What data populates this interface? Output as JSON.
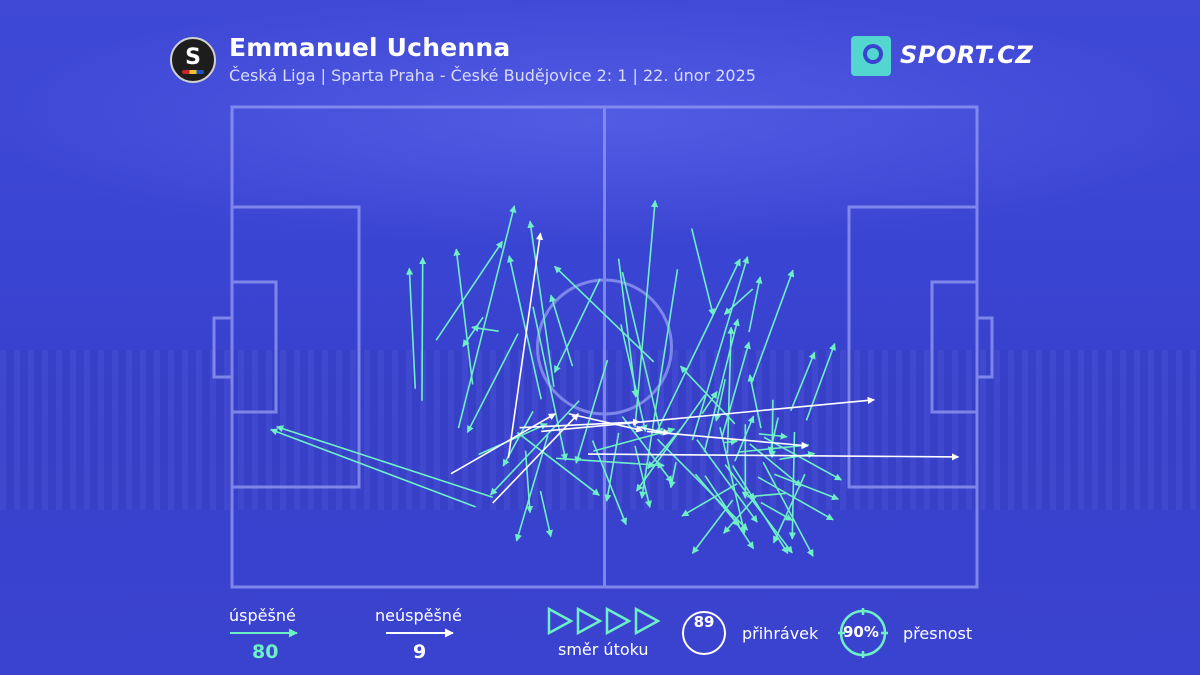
{
  "header": {
    "title": "Emmanuel Uchenna",
    "subtitle": "Česká Liga | Sparta Praha - České Budějovice 2: 1 | 22. únor 2025",
    "club_logo_letter": "S",
    "brand": "SPORT.CZ"
  },
  "legend": {
    "successful_label": "úspěšné",
    "successful_count": "80",
    "unsuccessful_label": "neúspěšné",
    "unsuccessful_count": "9",
    "direction_label": "směr útoku",
    "passes_value": "89",
    "passes_label": "přihrávek",
    "accuracy_value": "90%",
    "accuracy_label": "přesnost"
  },
  "colors": {
    "background": "#3a43cf",
    "successful": "#6ef0c6",
    "unsuccessful": "#ffffff",
    "pitch_lines": "#8a92ee"
  },
  "chart_data": {
    "type": "scatter",
    "description_units": "pitch coordinates, x 0-100 along attack direction (left to right), y 0-100 from top touchline",
    "xlim": [
      0,
      100
    ],
    "ylim": [
      0,
      100
    ],
    "series": [
      {
        "name": "úspěšné",
        "passes": [
          [
            32.7,
            83.3,
            5.2,
            67.2
          ],
          [
            35.0,
            81.3,
            6.0,
            66.6
          ],
          [
            25.5,
            61.2,
            25.6,
            31.4
          ],
          [
            24.6,
            58.7,
            23.8,
            33.6
          ],
          [
            32.3,
            57.8,
            30.1,
            29.6
          ],
          [
            35.8,
            46.7,
            32.2,
            45.9
          ],
          [
            27.4,
            48.6,
            36.3,
            28.0
          ],
          [
            30.4,
            66.9,
            37.9,
            20.6
          ],
          [
            43.2,
            58.3,
            40.0,
            23.8
          ],
          [
            56.6,
            53.1,
            43.3,
            33.2
          ],
          [
            41.5,
            60.9,
            37.2,
            31.0
          ],
          [
            33.7,
            43.8,
            31.0,
            49.9
          ],
          [
            38.4,
            47.2,
            31.6,
            67.8
          ],
          [
            45.7,
            54.0,
            42.8,
            39.2
          ],
          [
            43.5,
            73.2,
            58.0,
            74.7
          ],
          [
            40.4,
            41.6,
            44.8,
            73.6
          ],
          [
            49.4,
            35.8,
            43.3,
            55.3
          ],
          [
            50.4,
            52.7,
            46.2,
            74.2
          ],
          [
            52.2,
            45.3,
            55.5,
            67.6
          ],
          [
            54.1,
            66.7,
            56.8,
            19.5
          ],
          [
            52.4,
            34.4,
            57.6,
            68.3
          ],
          [
            51.9,
            31.6,
            54.2,
            60.4
          ],
          [
            63.5,
            60.0,
            54.3,
            80.0
          ],
          [
            59.8,
            33.8,
            55.0,
            81.5
          ],
          [
            61.7,
            25.3,
            64.6,
            43.4
          ],
          [
            63.1,
            63.9,
            65.1,
            59.3
          ],
          [
            66.2,
            56.7,
            65.0,
            65.4
          ],
          [
            66.1,
            69.9,
            67.8,
            69.6
          ],
          [
            68.9,
            66.1,
            68.9,
            81.5
          ],
          [
            73.3,
            64.7,
            72.2,
            72.2
          ],
          [
            73.5,
            73.4,
            78.2,
            72.2
          ],
          [
            72.6,
            61.0,
            72.5,
            73.0
          ],
          [
            75.0,
            63.3,
            78.2,
            51.1
          ],
          [
            77.1,
            65.3,
            80.9,
            49.3
          ],
          [
            67.5,
            66.0,
            60.2,
            54.0
          ],
          [
            69.9,
            37.9,
            66.1,
            43.2
          ],
          [
            69.4,
            46.9,
            70.9,
            35.4
          ],
          [
            71.0,
            66.9,
            69.5,
            55.8
          ],
          [
            69.7,
            57.7,
            75.3,
            34.0
          ],
          [
            71.4,
            68.8,
            81.8,
            77.7
          ],
          [
            68.0,
            71.9,
            77.4,
            70.4
          ],
          [
            66.5,
            72.2,
            67.0,
            45.9
          ],
          [
            61.8,
            69.4,
            69.2,
            31.2
          ],
          [
            57.1,
            67.4,
            68.2,
            31.7
          ],
          [
            63.4,
            71.9,
            67.9,
            44.2
          ],
          [
            65.8,
            68.6,
            69.4,
            49.0
          ],
          [
            67.5,
            73.8,
            70.0,
            64.4
          ],
          [
            70.7,
            68.1,
            74.5,
            68.7
          ],
          [
            76.9,
            76.5,
            72.7,
            90.8
          ],
          [
            74.3,
            80.5,
            69.2,
            81.2
          ],
          [
            70.4,
            81.0,
            66.0,
            88.8
          ],
          [
            67.2,
            81.9,
            61.8,
            93.0
          ],
          [
            71.0,
            82.4,
            75.2,
            86.1
          ],
          [
            72.8,
            76.5,
            81.4,
            81.7
          ],
          [
            60.2,
            67.1,
            55.8,
            75.3
          ],
          [
            57.1,
            69.2,
            69.2,
            88.1
          ],
          [
            62.4,
            69.3,
            70.5,
            86.5
          ],
          [
            65.5,
            66.7,
            68.8,
            88.8
          ],
          [
            62.2,
            76.5,
            68.1,
            87.3
          ],
          [
            54.1,
            70.6,
            56.1,
            83.4
          ],
          [
            46.6,
            61.2,
            34.7,
            80.8
          ],
          [
            40.4,
            63.4,
            36.4,
            74.8
          ],
          [
            39.4,
            71.6,
            40.0,
            84.5
          ],
          [
            33.1,
            72.4,
            42.3,
            66.0
          ],
          [
            38.3,
            67.8,
            49.3,
            80.9
          ],
          [
            41.4,
            80.0,
            42.8,
            89.5
          ],
          [
            48.4,
            69.5,
            52.9,
            87.0
          ],
          [
            51.9,
            67.9,
            50.3,
            82.1
          ],
          [
            48.5,
            71.7,
            59.4,
            67.1
          ],
          [
            52.4,
            64.5,
            59.1,
            78.2
          ],
          [
            63.5,
            76.8,
            70.0,
            92.0
          ],
          [
            67.2,
            74.7,
            74.6,
            93.0
          ],
          [
            75.5,
            67.7,
            75.2,
            90.0
          ],
          [
            69.5,
            70.2,
            76.4,
            79.0
          ],
          [
            70.6,
            77.1,
            80.7,
            86.0
          ],
          [
            42.4,
            68.4,
            38.2,
            90.4
          ],
          [
            59.6,
            74.0,
            58.9,
            79.3
          ],
          [
            66.2,
            74.5,
            75.2,
            92.9
          ],
          [
            71.3,
            74.0,
            78.0,
            93.6
          ],
          [
            67.8,
            78.5,
            60.4,
            85.2
          ]
        ]
      },
      {
        "name": "neúspěšné",
        "passes": [
          [
            35.0,
            82.5,
            46.5,
            63.9
          ],
          [
            29.4,
            76.4,
            43.4,
            63.9
          ],
          [
            37.1,
            73.1,
            41.4,
            26.3
          ],
          [
            41.5,
            67.6,
            86.2,
            61.0
          ],
          [
            47.8,
            72.3,
            97.5,
            72.9
          ],
          [
            55.7,
            67.6,
            77.3,
            70.6
          ],
          [
            38.6,
            66.8,
            54.7,
            65.6
          ],
          [
            45.2,
            63.9,
            55.1,
            67.4
          ],
          [
            54.3,
            66.6,
            58.7,
            68.0
          ]
        ]
      }
    ]
  }
}
